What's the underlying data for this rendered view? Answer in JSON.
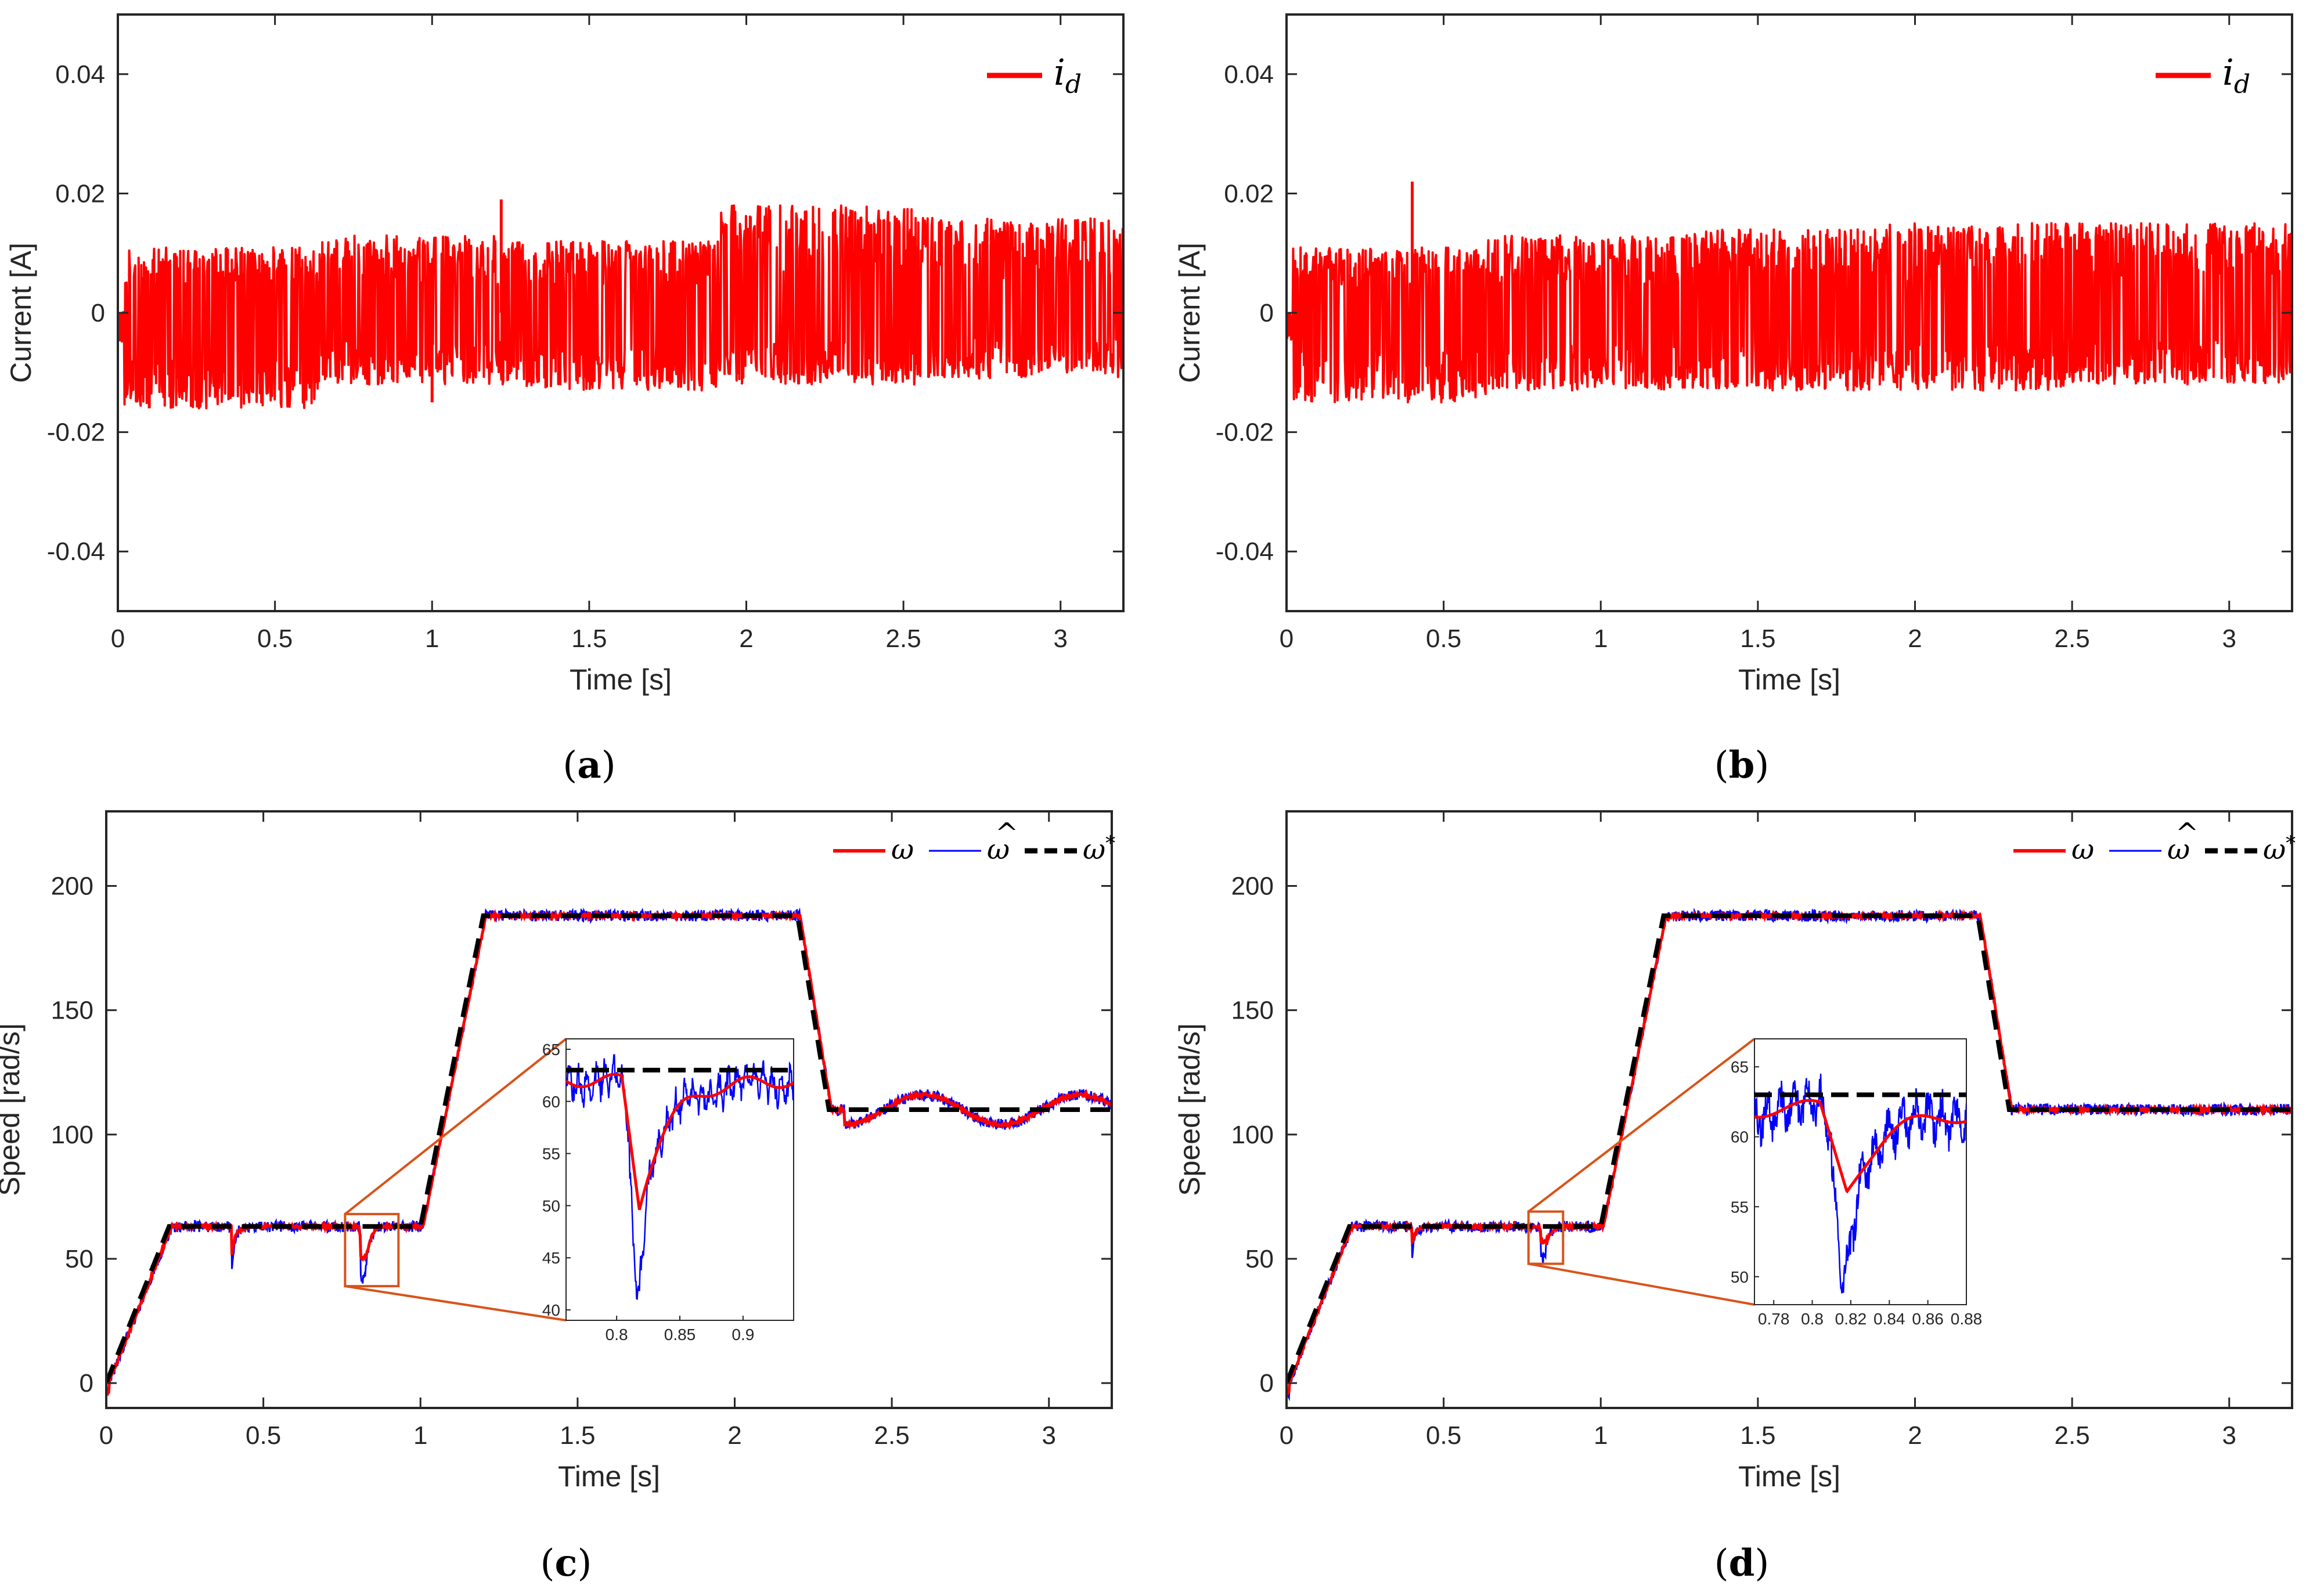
{
  "chart_data": [
    {
      "id": "a",
      "type": "line",
      "caption": {
        "open": "(",
        "letter": "a",
        "close": ")"
      },
      "xlabel": "Time [s]",
      "ylabel": "Current [A]",
      "xlim": [
        0,
        3.2
      ],
      "ylim": [
        -0.05,
        0.05
      ],
      "xticks": [
        0,
        0.5,
        1,
        1.5,
        2,
        2.5,
        3
      ],
      "xtick_labels": [
        "0",
        "0.5",
        "1",
        "1.5",
        "2",
        "2.5",
        "3"
      ],
      "yticks": [
        -0.04,
        -0.02,
        0,
        0.02,
        0.04
      ],
      "ytick_labels": [
        "-0.04",
        "-0.02",
        "0",
        "0.02",
        "0.04"
      ],
      "legend_position": "top-right",
      "series": [
        {
          "name": "i_d",
          "label_main": "i",
          "label_sub": "d",
          "color": "#ff0000",
          "noise": {
            "low": [
              -0.016,
              -0.012,
              -0.013,
              -0.012,
              -0.011
            ],
            "high": [
              0.011,
              0.013,
              0.012,
              0.018,
              0.016
            ]
          },
          "spikes": [
            {
              "t": 1.0,
              "v": -0.015
            },
            {
              "t": 1.22,
              "v": 0.019
            },
            {
              "t": 0.1,
              "v": -0.016
            }
          ]
        }
      ]
    },
    {
      "id": "b",
      "type": "line",
      "caption": {
        "open": "(",
        "letter": "b",
        "close": ")"
      },
      "xlabel": "Time [s]",
      "ylabel": "Current [A]",
      "xlim": [
        0,
        3.2
      ],
      "ylim": [
        -0.05,
        0.05
      ],
      "xticks": [
        0,
        0.5,
        1,
        1.5,
        2,
        2.5,
        3
      ],
      "xtick_labels": [
        "0",
        "0.5",
        "1",
        "1.5",
        "2",
        "2.5",
        "3"
      ],
      "yticks": [
        -0.04,
        -0.02,
        0,
        0.02,
        0.04
      ],
      "ytick_labels": [
        "-0.04",
        "-0.02",
        "0",
        "0.02",
        "0.04"
      ],
      "legend_position": "top-right",
      "series": [
        {
          "name": "i_d",
          "label_main": "i",
          "label_sub": "d",
          "color": "#ff0000",
          "noise": {
            "low": [
              -0.015,
              -0.013,
              -0.013,
              -0.013,
              -0.012
            ],
            "high": [
              0.011,
              0.013,
              0.014,
              0.015,
              0.015
            ]
          },
          "spikes": [
            {
              "t": 0.4,
              "v": 0.022
            },
            {
              "t": 0.08,
              "v": -0.015
            }
          ]
        }
      ]
    },
    {
      "id": "c",
      "type": "line",
      "caption": {
        "open": "(",
        "letter": "c",
        "close": ")"
      },
      "xlabel": "Time [s]",
      "ylabel": "Speed [rad/s]",
      "xlim": [
        0,
        3.2
      ],
      "ylim": [
        -10,
        230
      ],
      "xticks": [
        0,
        0.5,
        1,
        1.5,
        2,
        2.5,
        3
      ],
      "xtick_labels": [
        "0",
        "0.5",
        "1",
        "1.5",
        "2",
        "2.5",
        "3"
      ],
      "yticks": [
        0,
        50,
        100,
        150,
        200
      ],
      "ytick_labels": [
        "0",
        "50",
        "100",
        "150",
        "200"
      ],
      "legend_position": "top-right",
      "legend": [
        {
          "symbol": "ω",
          "accent": "",
          "color": "#ff0000",
          "style": "solid"
        },
        {
          "symbol": "ω",
          "accent": "^",
          "color": "#0000ff",
          "style": "solid"
        },
        {
          "symbol": "ω",
          "accent": "*",
          "color": "#000000",
          "style": "dashed"
        }
      ],
      "reference": [
        [
          0,
          0
        ],
        [
          0.2,
          63
        ],
        [
          1.0,
          63
        ],
        [
          1.2,
          188
        ],
        [
          2.2,
          188
        ],
        [
          2.3,
          110
        ],
        [
          3.2,
          110
        ]
      ],
      "disturbance": {
        "t": 0.4,
        "dip": 45
      },
      "dip": {
        "t": 0.81,
        "omega_min": 50,
        "omega_hat_min": 41
      },
      "oscillation": {
        "start": 2.3,
        "amplitude": 6,
        "period": 0.5
      },
      "zoom_box": {
        "x": [
          0.76,
          0.93
        ],
        "y": [
          39,
          68
        ]
      },
      "inset": {
        "xlim": [
          0.76,
          0.94
        ],
        "ylim": [
          39,
          66
        ],
        "xticks": [
          0.8,
          0.85,
          0.9
        ],
        "xtick_labels": [
          "0.8",
          "0.85",
          "0.9"
        ],
        "yticks": [
          40,
          45,
          50,
          55,
          60,
          65
        ],
        "ytick_labels": [
          "40",
          "45",
          "50",
          "55",
          "60",
          "65"
        ]
      }
    },
    {
      "id": "d",
      "type": "line",
      "caption": {
        "open": "(",
        "letter": "d",
        "close": ")"
      },
      "xlabel": "Time [s]",
      "ylabel": "Speed [rad/s]",
      "xlim": [
        0,
        3.2
      ],
      "ylim": [
        -10,
        230
      ],
      "xticks": [
        0,
        0.5,
        1,
        1.5,
        2,
        2.5,
        3
      ],
      "xtick_labels": [
        "0",
        "0.5",
        "1",
        "1.5",
        "2",
        "2.5",
        "3"
      ],
      "yticks": [
        0,
        50,
        100,
        150,
        200
      ],
      "ytick_labels": [
        "0",
        "50",
        "100",
        "150",
        "200"
      ],
      "legend_position": "top-right",
      "legend": [
        {
          "symbol": "ω",
          "accent": "",
          "color": "#ff0000",
          "style": "solid"
        },
        {
          "symbol": "ω",
          "accent": "^",
          "color": "#0000ff",
          "style": "solid"
        },
        {
          "symbol": "ω",
          "accent": "*",
          "color": "#000000",
          "style": "dashed"
        }
      ],
      "reference": [
        [
          0,
          0
        ],
        [
          0.2,
          63
        ],
        [
          1.0,
          63
        ],
        [
          1.2,
          188
        ],
        [
          2.2,
          188
        ],
        [
          2.3,
          110
        ],
        [
          3.2,
          110
        ]
      ],
      "disturbance": {
        "t": 0.4,
        "dip": 52
      },
      "dip": {
        "t": 0.81,
        "omega_min": 56.5,
        "omega_hat_min": 50
      },
      "oscillation": {
        "start": 2.3,
        "amplitude": 0,
        "period": 0.5
      },
      "zoom_box": {
        "x": [
          0.77,
          0.88
        ],
        "y": [
          48,
          69
        ]
      },
      "inset": {
        "xlim": [
          0.77,
          0.88
        ],
        "ylim": [
          48,
          67
        ],
        "xticks": [
          0.78,
          0.8,
          0.82,
          0.84,
          0.86,
          0.88
        ],
        "xtick_labels": [
          "0.78",
          "0.8",
          "0.82",
          "0.84",
          "0.86",
          "0.88"
        ],
        "yticks": [
          50,
          55,
          60,
          65
        ],
        "ytick_labels": [
          "50",
          "55",
          "60",
          "65"
        ]
      }
    }
  ],
  "colors": {
    "axis": "#262626",
    "zoom": "#d95319",
    "omega": "#ff0000",
    "omega_hat": "#0000ff",
    "omega_ref": "#000000"
  }
}
